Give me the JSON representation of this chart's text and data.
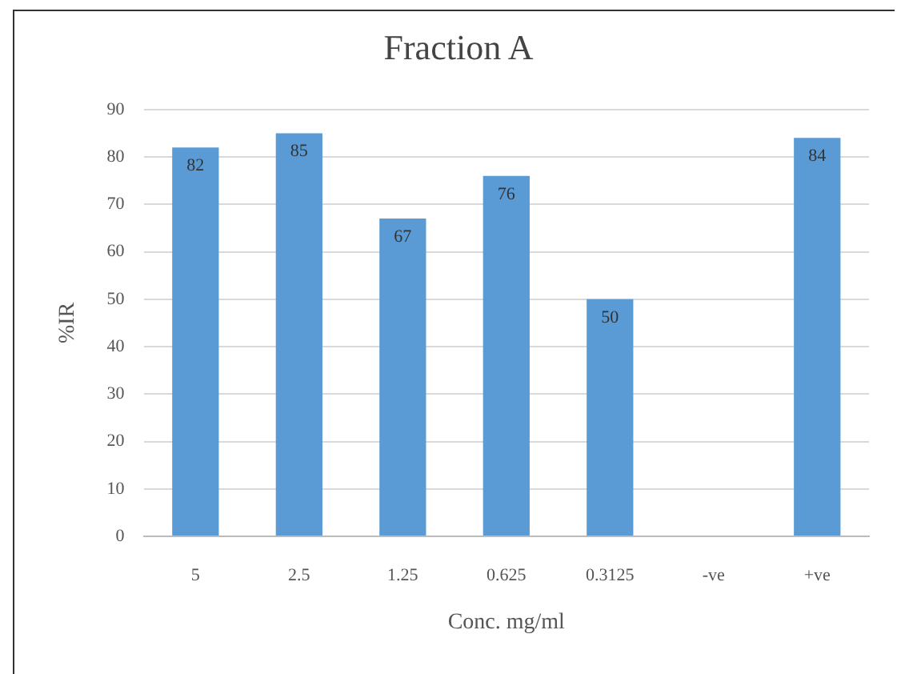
{
  "chart_data": {
    "type": "bar",
    "title": "Fraction A",
    "xlabel": "Conc. mg/ml",
    "ylabel": "%IR",
    "categories": [
      "5",
      "2.5",
      "1.25",
      "0.625",
      "0.3125",
      "-ve",
      "+ve"
    ],
    "values": [
      82,
      85,
      67,
      76,
      50,
      null,
      84
    ],
    "color": "#5b9bd5",
    "ylim": [
      0,
      90
    ],
    "yticks": [
      0,
      10,
      20,
      30,
      40,
      50,
      60,
      70,
      80,
      90
    ],
    "grid": "y",
    "data_labels": true,
    "legend": false
  }
}
